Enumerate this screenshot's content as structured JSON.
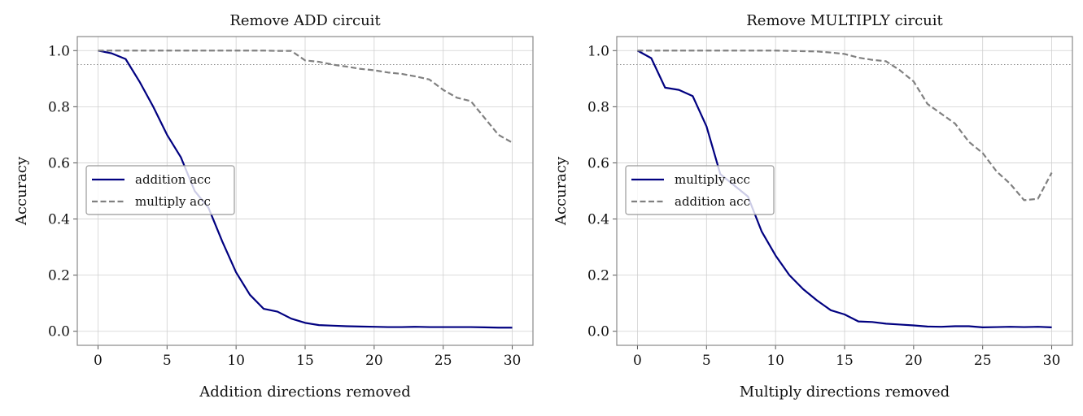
{
  "chart_data": [
    {
      "type": "line",
      "title": "Remove ADD circuit",
      "xlabel": "Addition directions removed",
      "ylabel": "Accuracy",
      "xlim": [
        -1.5,
        31.5
      ],
      "ylim": [
        -0.05,
        1.05
      ],
      "xticks": [
        "0",
        "5",
        "10",
        "15",
        "20",
        "25",
        "30"
      ],
      "yticks": [
        "0.0",
        "0.2",
        "0.4",
        "0.6",
        "0.8",
        "1.0"
      ],
      "grid": true,
      "legend": "center-left",
      "threshold": 0.95,
      "x": [
        0,
        1,
        2,
        3,
        4,
        5,
        6,
        7,
        8,
        9,
        10,
        11,
        12,
        13,
        14,
        15,
        16,
        17,
        18,
        19,
        20,
        21,
        22,
        23,
        24,
        25,
        26,
        27,
        28,
        29,
        30
      ],
      "series": [
        {
          "name": "addition acc",
          "style": "solid",
          "color": "#000080",
          "values": [
            1.0,
            0.99,
            0.97,
            0.89,
            0.8,
            0.7,
            0.62,
            0.5,
            0.44,
            0.32,
            0.21,
            0.13,
            0.08,
            0.07,
            0.045,
            0.03,
            0.022,
            0.02,
            0.018,
            0.017,
            0.016,
            0.015,
            0.015,
            0.016,
            0.015,
            0.015,
            0.015,
            0.015,
            0.014,
            0.013,
            0.013
          ]
        },
        {
          "name": "multiply acc",
          "style": "dashed",
          "color": "#808080",
          "values": [
            1.0,
            1.0,
            1.0,
            1.0,
            1.0,
            1.0,
            1.0,
            1.0,
            1.0,
            1.0,
            1.0,
            1.0,
            1.0,
            0.999,
            0.999,
            0.965,
            0.96,
            0.95,
            0.943,
            0.935,
            0.93,
            0.922,
            0.917,
            0.908,
            0.897,
            0.86,
            0.832,
            0.82,
            0.76,
            0.7,
            0.672
          ]
        }
      ]
    },
    {
      "type": "line",
      "title": "Remove MULTIPLY circuit",
      "xlabel": "Multiply directions removed",
      "ylabel": "Accuracy",
      "xlim": [
        -1.5,
        31.5
      ],
      "ylim": [
        -0.05,
        1.05
      ],
      "xticks": [
        "0",
        "5",
        "10",
        "15",
        "20",
        "25",
        "30"
      ],
      "yticks": [
        "0.0",
        "0.2",
        "0.4",
        "0.6",
        "0.8",
        "1.0"
      ],
      "grid": true,
      "legend": "center-left",
      "threshold": 0.95,
      "x": [
        0,
        1,
        2,
        3,
        4,
        5,
        6,
        7,
        8,
        9,
        10,
        11,
        12,
        13,
        14,
        15,
        16,
        17,
        18,
        19,
        20,
        21,
        22,
        23,
        24,
        25,
        26,
        27,
        28,
        29,
        30
      ],
      "series": [
        {
          "name": "multiply acc",
          "style": "solid",
          "color": "#000080",
          "values": [
            1.0,
            0.973,
            0.868,
            0.86,
            0.838,
            0.73,
            0.56,
            0.52,
            0.48,
            0.355,
            0.27,
            0.2,
            0.15,
            0.11,
            0.075,
            0.06,
            0.035,
            0.033,
            0.027,
            0.024,
            0.021,
            0.017,
            0.016,
            0.018,
            0.018,
            0.014,
            0.015,
            0.016,
            0.015,
            0.016,
            0.014
          ]
        },
        {
          "name": "addition acc",
          "style": "dashed",
          "color": "#808080",
          "values": [
            1.0,
            1.0,
            1.0,
            1.0,
            1.0,
            1.0,
            1.0,
            1.0,
            1.0,
            1.0,
            1.0,
            0.999,
            0.998,
            0.997,
            0.993,
            0.988,
            0.975,
            0.967,
            0.962,
            0.93,
            0.89,
            0.81,
            0.775,
            0.74,
            0.675,
            0.635,
            0.57,
            0.525,
            0.467,
            0.472,
            0.565
          ]
        }
      ]
    }
  ]
}
